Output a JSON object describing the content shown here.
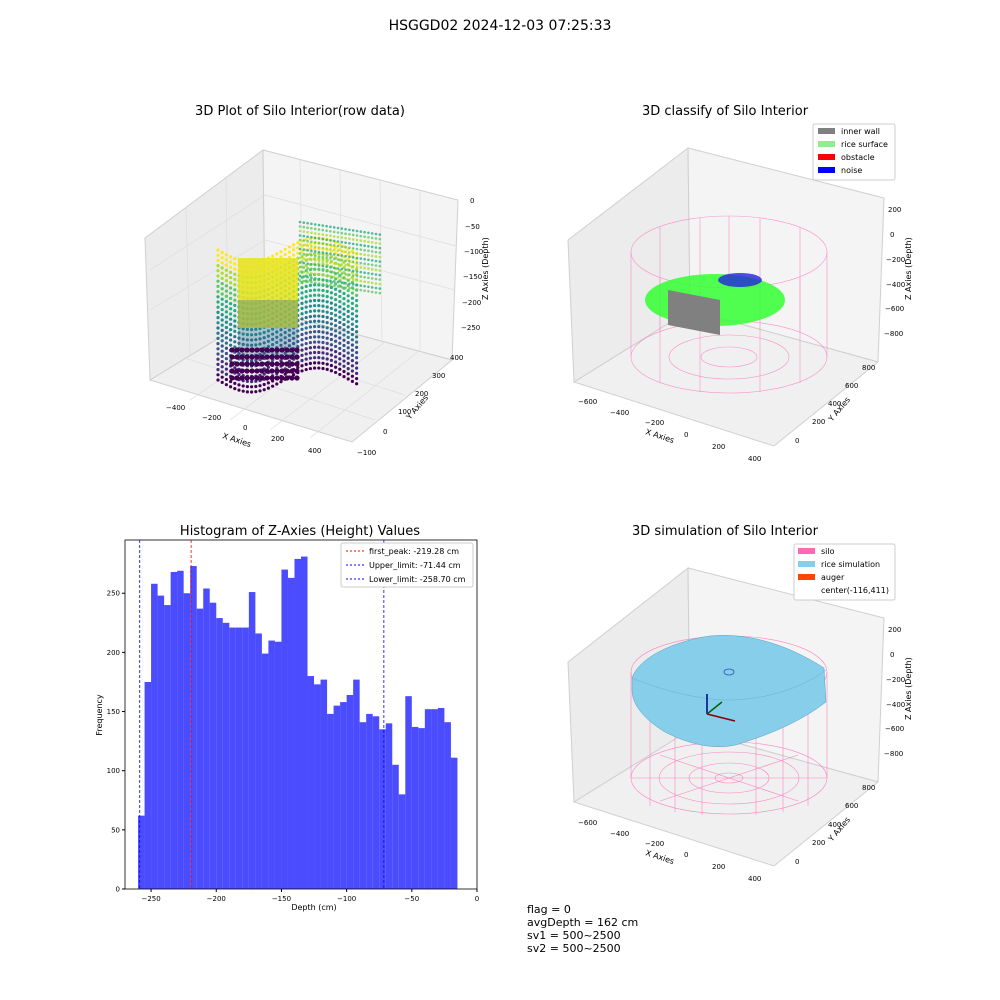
{
  "suptitle": "HSGGD02 2024-12-03 07:25:33",
  "panels": {
    "raw": {
      "title": "3D Plot of Silo Interior(row data)",
      "x_label": "X Axies",
      "y_label": "Y Axies",
      "z_label": "Z Axies (Depth)",
      "x_ticks": [
        "−400",
        "−200",
        "0",
        "200",
        "400"
      ],
      "y_ticks": [
        "−100",
        "0",
        "100",
        "200",
        "300",
        "400"
      ],
      "z_ticks": [
        "0",
        "−50",
        "−100",
        "−150",
        "−200",
        "−250"
      ]
    },
    "classify": {
      "title": "3D classify of Silo Interior",
      "x_label": "X Axies",
      "y_label": "Y Axies",
      "z_label": "Z Axies (Depth)",
      "x_ticks": [
        "−600",
        "−400",
        "−200",
        "0",
        "200",
        "400"
      ],
      "y_ticks": [
        "0",
        "200",
        "400",
        "600",
        "800"
      ],
      "z_ticks": [
        "200",
        "0",
        "−200",
        "−400",
        "−600",
        "−800"
      ],
      "legend": [
        {
          "label": "inner wall",
          "color": "#808080"
        },
        {
          "label": "rice surface",
          "color": "#90ee90"
        },
        {
          "label": "obstacle",
          "color": "#ff0000"
        },
        {
          "label": "noise",
          "color": "#0000ff"
        }
      ]
    },
    "simulation": {
      "title": "3D simulation of Silo Interior",
      "x_label": "X Axies",
      "y_label": "Y Axies",
      "z_label": "Z Axies (Depth)",
      "x_ticks": [
        "−600",
        "−400",
        "−200",
        "0",
        "200",
        "400"
      ],
      "y_ticks": [
        "0",
        "200",
        "400",
        "600",
        "800"
      ],
      "z_ticks": [
        "200",
        "0",
        "−200",
        "−400",
        "−600",
        "−800"
      ],
      "legend": [
        {
          "label": "silo",
          "color": "#ff69b4"
        },
        {
          "label": "rice simulation",
          "color": "#87ceeb"
        },
        {
          "label": "auger",
          "color": "#ff4500"
        },
        {
          "label": "center(-116,411)",
          "color": ""
        }
      ]
    }
  },
  "chart_data": {
    "type": "bar",
    "title": "Histogram of Z-Axies (Height) Values",
    "xlabel": "Depth (cm)",
    "ylabel": "Frequency",
    "xlim": [
      -270,
      0
    ],
    "ylim": [
      0,
      295
    ],
    "bar_color": "#0000ff",
    "bin_start": -260,
    "bin_width": 5,
    "values": [
      62,
      175,
      258,
      248,
      240,
      268,
      269,
      250,
      273,
      237,
      254,
      242,
      229,
      225,
      221,
      221,
      221,
      251,
      216,
      199,
      210,
      209,
      270,
      263,
      279,
      281,
      180,
      173,
      177,
      148,
      155,
      158,
      164,
      177,
      141,
      148,
      146,
      135,
      140,
      105,
      80,
      163,
      137,
      136,
      152,
      152,
      153,
      141,
      111
    ],
    "x_ticks": [
      -250,
      -200,
      -150,
      -100,
      -50,
      0
    ],
    "y_ticks": [
      0,
      50,
      100,
      150,
      200,
      250
    ],
    "lines": [
      {
        "label": "first_peak: -219.28 cm",
        "x": -219.28,
        "color": "#ff0000"
      },
      {
        "label": "Upper_limit: -71.44 cm",
        "x": -71.44,
        "color": "#0000ff"
      },
      {
        "label": "Lower_limit: -258.70 cm",
        "x": -258.7,
        "color": "#0000ff"
      }
    ]
  },
  "footer": {
    "flag": "flag = 0",
    "avg_depth": "avgDepth = 162 cm",
    "sv1": "sv1 = 500~2500",
    "sv2": "sv2 = 500~2500"
  }
}
